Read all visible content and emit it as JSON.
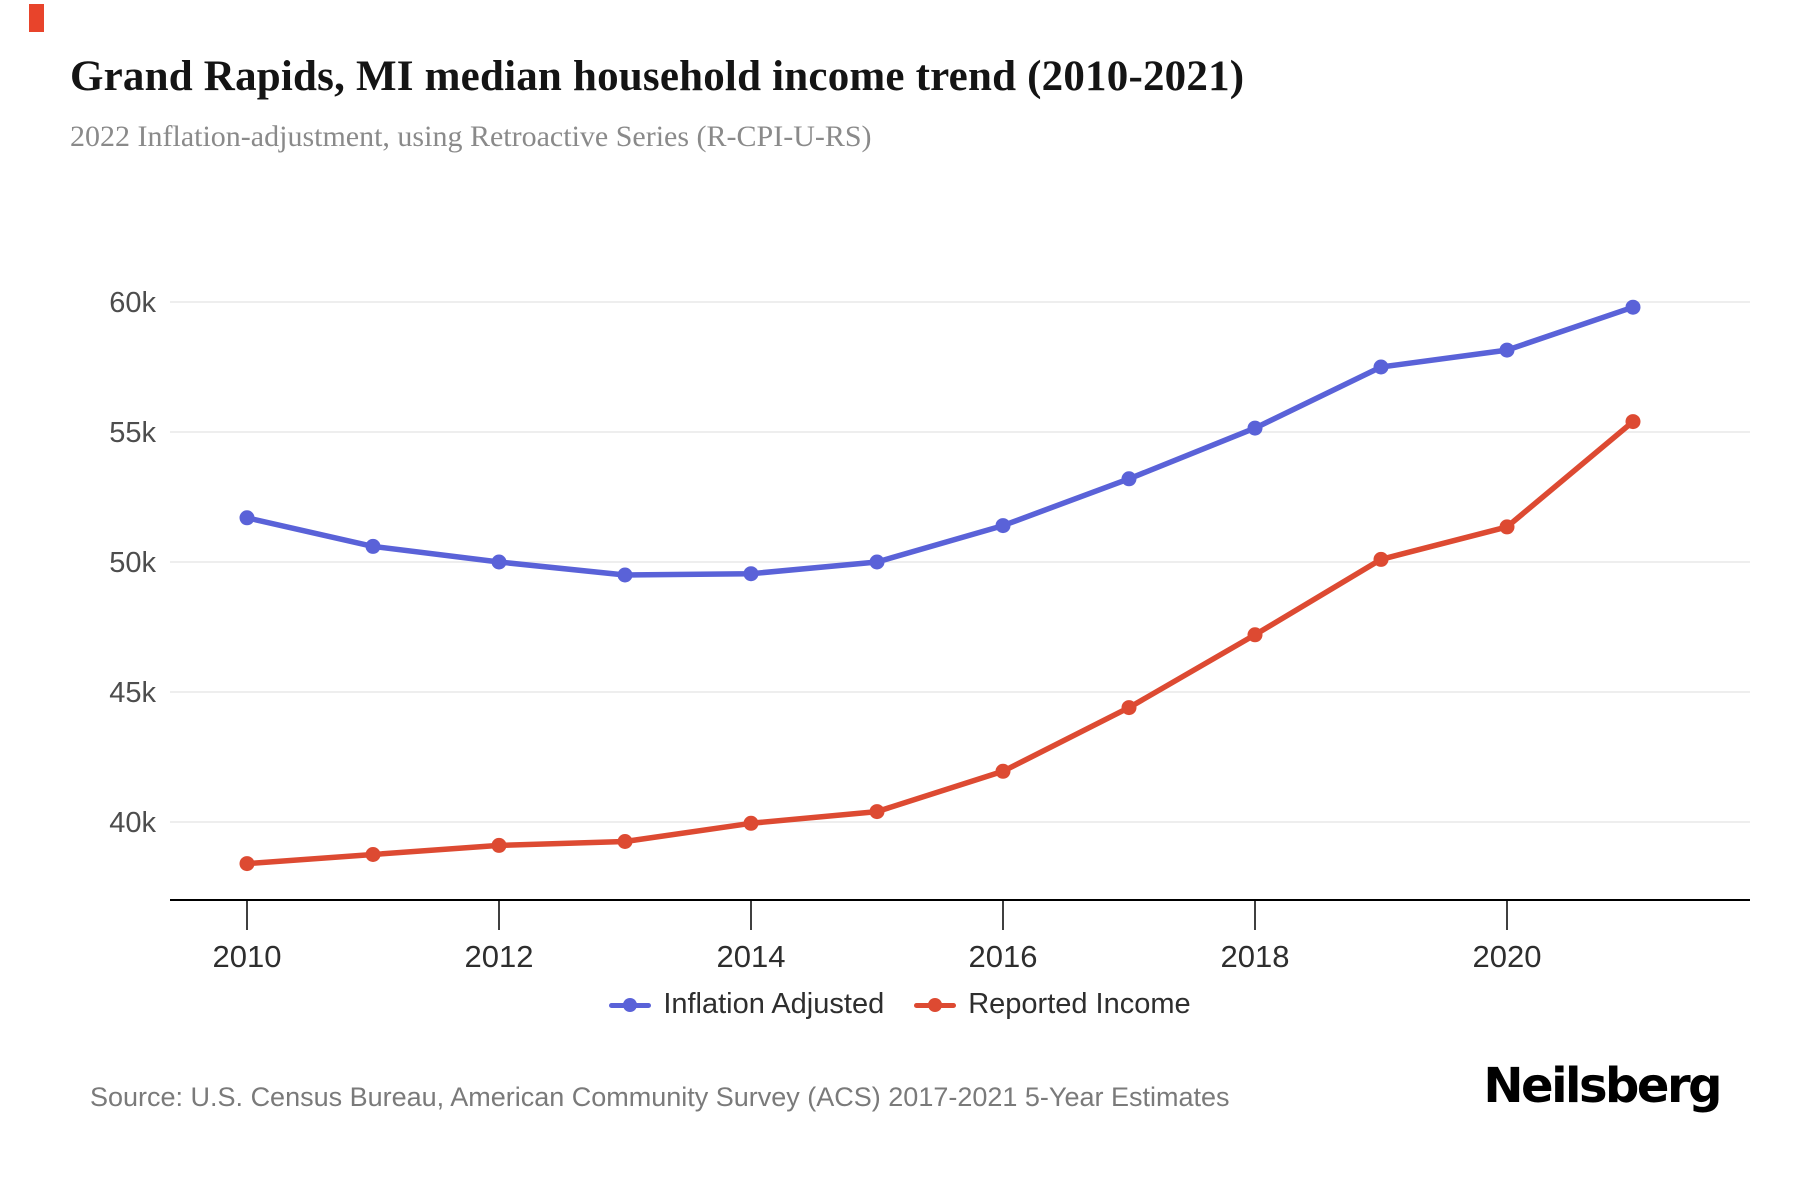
{
  "accent_color": "#e8442b",
  "header": {
    "title": "Grand Rapids, MI median household income trend (2010-2021)",
    "subtitle": "2022 Inflation-adjustment, using Retroactive Series (R-CPI-U-RS)"
  },
  "chart_data": {
    "type": "line",
    "title": "Grand Rapids, MI median household income trend (2010-2021)",
    "subtitle": "2022 Inflation-adjustment, using Retroactive Series (R-CPI-U-RS)",
    "x": [
      2010,
      2011,
      2012,
      2013,
      2014,
      2015,
      2016,
      2017,
      2018,
      2019,
      2020,
      2021
    ],
    "series": [
      {
        "name": "Inflation Adjusted",
        "color": "#5a62d8",
        "values": [
          51700,
          50600,
          50000,
          49500,
          49550,
          50000,
          51400,
          53200,
          55150,
          57500,
          58150,
          59800
        ]
      },
      {
        "name": "Reported Income",
        "color": "#dd4a32",
        "values": [
          38400,
          38750,
          39100,
          39250,
          39950,
          40400,
          41950,
          44400,
          47200,
          50100,
          51350,
          55400
        ]
      }
    ],
    "ylim": [
      37000,
      61500
    ],
    "ytick_values": [
      40000,
      45000,
      50000,
      55000,
      60000
    ],
    "ytick_labels": [
      "40k",
      "45k",
      "50k",
      "55k",
      "60k"
    ],
    "xtick_values": [
      2010,
      2012,
      2014,
      2016,
      2018,
      2020
    ],
    "xtick_labels": [
      "2010",
      "2012",
      "2014",
      "2016",
      "2018",
      "2020"
    ],
    "grid": true,
    "legend_position": "bottom"
  },
  "footer": {
    "source": "Source: U.S. Census Bureau, American Community Survey (ACS) 2017-2021 5-Year Estimates",
    "brand": "Neilsberg"
  }
}
